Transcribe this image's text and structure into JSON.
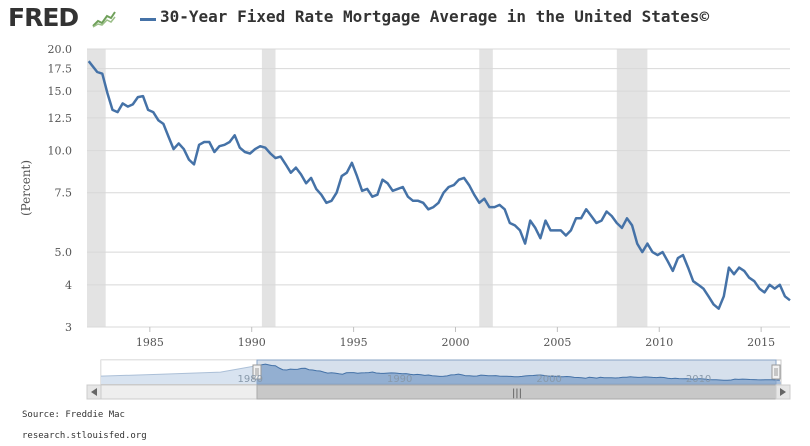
{
  "header": {
    "logo_text": "FRED",
    "logo_icon": "trend-graph-icon",
    "title": "30-Year Fixed Rate Mortgage Average in the United States©"
  },
  "footer": {
    "source": "Source: Freddie Mac",
    "url": "research.stlouisfed.org"
  },
  "colors": {
    "series": "#4572A7",
    "recession": "#e3e3e3",
    "grid": "#d8d8d8",
    "navigator_fill": "#a9c0dd"
  },
  "navigator": {
    "scrollbar_grip": "|||",
    "labels": [
      "1980",
      "1990",
      "2000",
      "2010"
    ]
  },
  "chart_data": {
    "type": "line",
    "title": "30-Year Fixed Rate Mortgage Average in the United States©",
    "xlabel": "",
    "ylabel": "(Percent)",
    "y_scale": "log",
    "ylim": [
      3,
      20
    ],
    "xlim": [
      "1981-12",
      "2016-06"
    ],
    "y_ticks": [
      "3",
      "4",
      "5.0",
      "7.5",
      "10.0",
      "12.5",
      "15.0",
      "17.5",
      "20.0"
    ],
    "x_ticks": [
      "1985",
      "1990",
      "1995",
      "2000",
      "2005",
      "2010",
      "2015"
    ],
    "grid": true,
    "legend": "top",
    "recessions": [
      {
        "start": "1981-07",
        "end": "1982-11"
      },
      {
        "start": "1990-07",
        "end": "1991-03"
      },
      {
        "start": "2001-03",
        "end": "2001-11"
      },
      {
        "start": "2007-12",
        "end": "2009-06"
      }
    ],
    "series": [
      {
        "name": "30-Year Fixed Rate Mortgage Average in the United States©",
        "x": [
          "1982-01",
          "1982-06",
          "1982-09",
          "1982-12",
          "1983-03",
          "1983-06",
          "1983-09",
          "1983-12",
          "1984-03",
          "1984-06",
          "1984-09",
          "1984-12",
          "1985-03",
          "1985-06",
          "1985-09",
          "1985-12",
          "1986-03",
          "1986-06",
          "1986-09",
          "1986-12",
          "1987-03",
          "1987-06",
          "1987-09",
          "1987-12",
          "1988-03",
          "1988-06",
          "1988-09",
          "1988-12",
          "1989-03",
          "1989-06",
          "1989-09",
          "1989-12",
          "1990-03",
          "1990-06",
          "1990-09",
          "1990-12",
          "1991-03",
          "1991-06",
          "1991-09",
          "1991-12",
          "1992-03",
          "1992-06",
          "1992-09",
          "1992-12",
          "1993-03",
          "1993-06",
          "1993-09",
          "1993-12",
          "1994-03",
          "1994-06",
          "1994-09",
          "1994-12",
          "1995-03",
          "1995-06",
          "1995-09",
          "1995-12",
          "1996-03",
          "1996-06",
          "1996-09",
          "1996-12",
          "1997-03",
          "1997-06",
          "1997-09",
          "1997-12",
          "1998-03",
          "1998-06",
          "1998-09",
          "1998-12",
          "1999-03",
          "1999-06",
          "1999-09",
          "1999-12",
          "2000-03",
          "2000-06",
          "2000-09",
          "2000-12",
          "2001-03",
          "2001-06",
          "2001-09",
          "2001-12",
          "2002-03",
          "2002-06",
          "2002-09",
          "2002-12",
          "2003-03",
          "2003-06",
          "2003-09",
          "2003-12",
          "2004-03",
          "2004-06",
          "2004-09",
          "2004-12",
          "2005-03",
          "2005-06",
          "2005-09",
          "2005-12",
          "2006-03",
          "2006-06",
          "2006-09",
          "2006-12",
          "2007-03",
          "2007-06",
          "2007-09",
          "2007-12",
          "2008-03",
          "2008-06",
          "2008-09",
          "2008-12",
          "2009-03",
          "2009-06",
          "2009-09",
          "2009-12",
          "2010-03",
          "2010-06",
          "2010-09",
          "2010-12",
          "2011-03",
          "2011-06",
          "2011-09",
          "2011-12",
          "2012-03",
          "2012-06",
          "2012-09",
          "2012-12",
          "2013-03",
          "2013-06",
          "2013-09",
          "2013-12",
          "2014-03",
          "2014-06",
          "2014-09",
          "2014-12",
          "2015-03",
          "2015-06",
          "2015-09",
          "2015-12",
          "2016-03",
          "2016-06"
        ],
        "y": [
          18.4,
          17.1,
          16.9,
          14.8,
          13.2,
          13.0,
          13.8,
          13.5,
          13.7,
          14.4,
          14.5,
          13.2,
          13.0,
          12.3,
          12.0,
          11.0,
          10.1,
          10.5,
          10.1,
          9.4,
          9.1,
          10.4,
          10.6,
          10.6,
          9.9,
          10.3,
          10.4,
          10.6,
          11.1,
          10.2,
          9.9,
          9.8,
          10.1,
          10.3,
          10.2,
          9.8,
          9.5,
          9.6,
          9.1,
          8.6,
          8.9,
          8.5,
          8.0,
          8.3,
          7.7,
          7.4,
          7.0,
          7.1,
          7.5,
          8.4,
          8.6,
          9.2,
          8.4,
          7.6,
          7.7,
          7.3,
          7.4,
          8.2,
          8.0,
          7.6,
          7.7,
          7.8,
          7.3,
          7.1,
          7.1,
          7.0,
          6.7,
          6.8,
          7.0,
          7.5,
          7.8,
          7.9,
          8.2,
          8.3,
          7.9,
          7.4,
          7.0,
          7.2,
          6.8,
          6.8,
          6.9,
          6.7,
          6.1,
          6.0,
          5.8,
          5.3,
          6.2,
          5.9,
          5.5,
          6.2,
          5.8,
          5.8,
          5.8,
          5.6,
          5.8,
          6.3,
          6.3,
          6.7,
          6.4,
          6.1,
          6.2,
          6.6,
          6.4,
          6.1,
          5.9,
          6.3,
          6.0,
          5.3,
          5.0,
          5.3,
          5.0,
          4.9,
          5.0,
          4.7,
          4.4,
          4.8,
          4.9,
          4.5,
          4.1,
          4.0,
          3.9,
          3.7,
          3.5,
          3.4,
          3.7,
          4.5,
          4.3,
          4.5,
          4.4,
          4.2,
          4.1,
          3.9,
          3.8,
          4.0,
          3.9,
          4.0,
          3.7,
          3.6
        ]
      }
    ]
  }
}
